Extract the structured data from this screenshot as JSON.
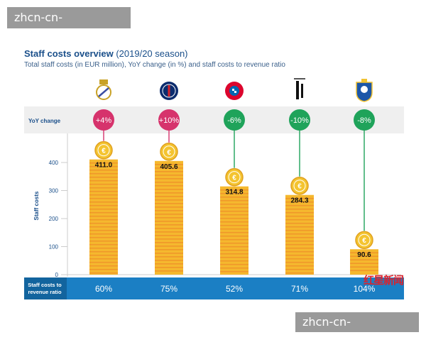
{
  "watermark_top": "zhcn-cn-kering.com",
  "watermark_bottom": "zhcn-cn-kering.com",
  "header": {
    "title_bold": "Staff costs overview",
    "title_rest": " (2019/20 season)",
    "subtitle": "Total staff costs (in EUR million), YoY change (in %) and staff costs to revenue ratio"
  },
  "colors": {
    "bar": "#f5b82e",
    "bar_stripe": "#f0972a",
    "coin": "#f4c430",
    "positive": "#d6336c",
    "negative": "#1fa35a",
    "ratio_band": "#1b7fc4",
    "yoy_band": "#efefef"
  },
  "chart_data": {
    "type": "bar",
    "categories": [
      "Real Madrid",
      "Paris Saint-Germain",
      "Bayern Munich",
      "Juventus",
      "FC Porto"
    ],
    "logo_icons": [
      "real-madrid-crest-icon",
      "psg-crest-icon",
      "bayern-crest-icon",
      "juventus-crest-icon",
      "porto-crest-icon"
    ],
    "values": [
      411.0,
      405.6,
      314.8,
      284.3,
      90.6
    ],
    "value_labels": [
      "411.0",
      "405.6",
      "314.8",
      "284.3",
      "90.6"
    ],
    "ylabel": "Staff costs",
    "ylim": [
      0,
      400
    ],
    "yticks": [
      0,
      100,
      200,
      300,
      400
    ],
    "ytick_labels": [
      "0",
      "100",
      "200",
      "300",
      "400"
    ],
    "yoy_label": "YoY change",
    "yoy_values": [
      4,
      10,
      -6,
      -10,
      -8
    ],
    "yoy_labels": [
      "+4%",
      "+10%",
      "-6%",
      "-10%",
      "-8%"
    ],
    "ratio_label_line1": "Staff costs to",
    "ratio_label_line2": "revenue ratio",
    "ratio_labels": [
      "60%",
      "75%",
      "52%",
      "71%",
      "104%"
    ],
    "grid": false
  },
  "corner_logo_text": "红星新闻"
}
